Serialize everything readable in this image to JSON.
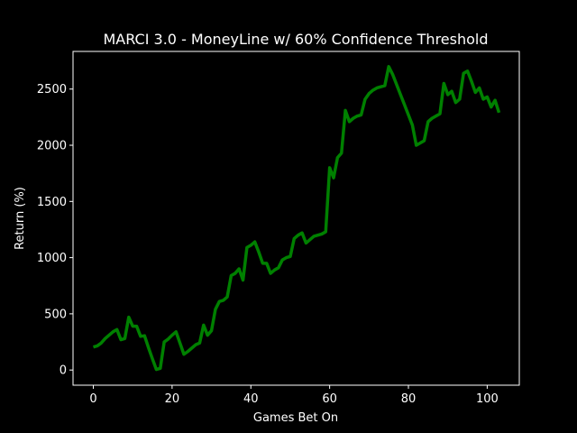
{
  "chart_data": {
    "type": "line",
    "title": "MARCI 3.0 - MoneyLine w/ 60% Confidence Threshold",
    "xlabel": "Games Bet On",
    "ylabel": "Return (%)",
    "x": [
      0,
      1,
      2,
      3,
      4,
      5,
      6,
      7,
      8,
      9,
      10,
      11,
      12,
      13,
      14,
      15,
      16,
      17,
      18,
      19,
      20,
      21,
      22,
      23,
      24,
      25,
      26,
      27,
      28,
      29,
      30,
      31,
      32,
      33,
      34,
      35,
      36,
      37,
      38,
      39,
      40,
      41,
      42,
      43,
      44,
      45,
      46,
      47,
      48,
      49,
      50,
      51,
      52,
      53,
      54,
      55,
      56,
      57,
      58,
      59,
      60,
      61,
      62,
      63,
      64,
      65,
      66,
      67,
      68,
      69,
      70,
      71,
      72,
      73,
      74,
      75,
      76,
      77,
      78,
      79,
      80,
      81,
      82,
      83,
      84,
      85,
      86,
      87,
      88,
      89,
      90,
      91,
      92,
      93,
      94,
      95,
      96,
      97,
      98,
      99,
      100,
      101,
      102,
      103
    ],
    "series": [
      {
        "color": "#008000",
        "values": [
          205,
          215,
          240,
          280,
          310,
          340,
          360,
          270,
          280,
          470,
          390,
          390,
          300,
          305,
          200,
          100,
          5,
          15,
          250,
          275,
          310,
          340,
          240,
          140,
          165,
          195,
          225,
          240,
          400,
          310,
          350,
          540,
          610,
          620,
          650,
          840,
          860,
          900,
          800,
          1090,
          1110,
          1140,
          1050,
          950,
          950,
          860,
          890,
          910,
          980,
          1000,
          1010,
          1170,
          1200,
          1220,
          1130,
          1160,
          1190,
          1200,
          1210,
          1230,
          1800,
          1710,
          1890,
          1930,
          2310,
          2210,
          2240,
          2260,
          2270,
          2410,
          2460,
          2490,
          2510,
          2520,
          2530,
          2700,
          2630,
          2540,
          2450,
          2360,
          2270,
          2180,
          2000,
          2020,
          2040,
          2210,
          2240,
          2260,
          2280,
          2550,
          2450,
          2480,
          2380,
          2410,
          2640,
          2660,
          2570,
          2470,
          2510,
          2410,
          2430,
          2340,
          2400,
          2290
        ]
      }
    ],
    "xlim": [
      -5.15,
      108.15
    ],
    "ylim": [
      -135,
      2835
    ],
    "xticks": [
      0,
      20,
      40,
      60,
      80,
      100
    ],
    "yticks": [
      0,
      500,
      1000,
      1500,
      2000,
      2500
    ],
    "grid": false
  }
}
